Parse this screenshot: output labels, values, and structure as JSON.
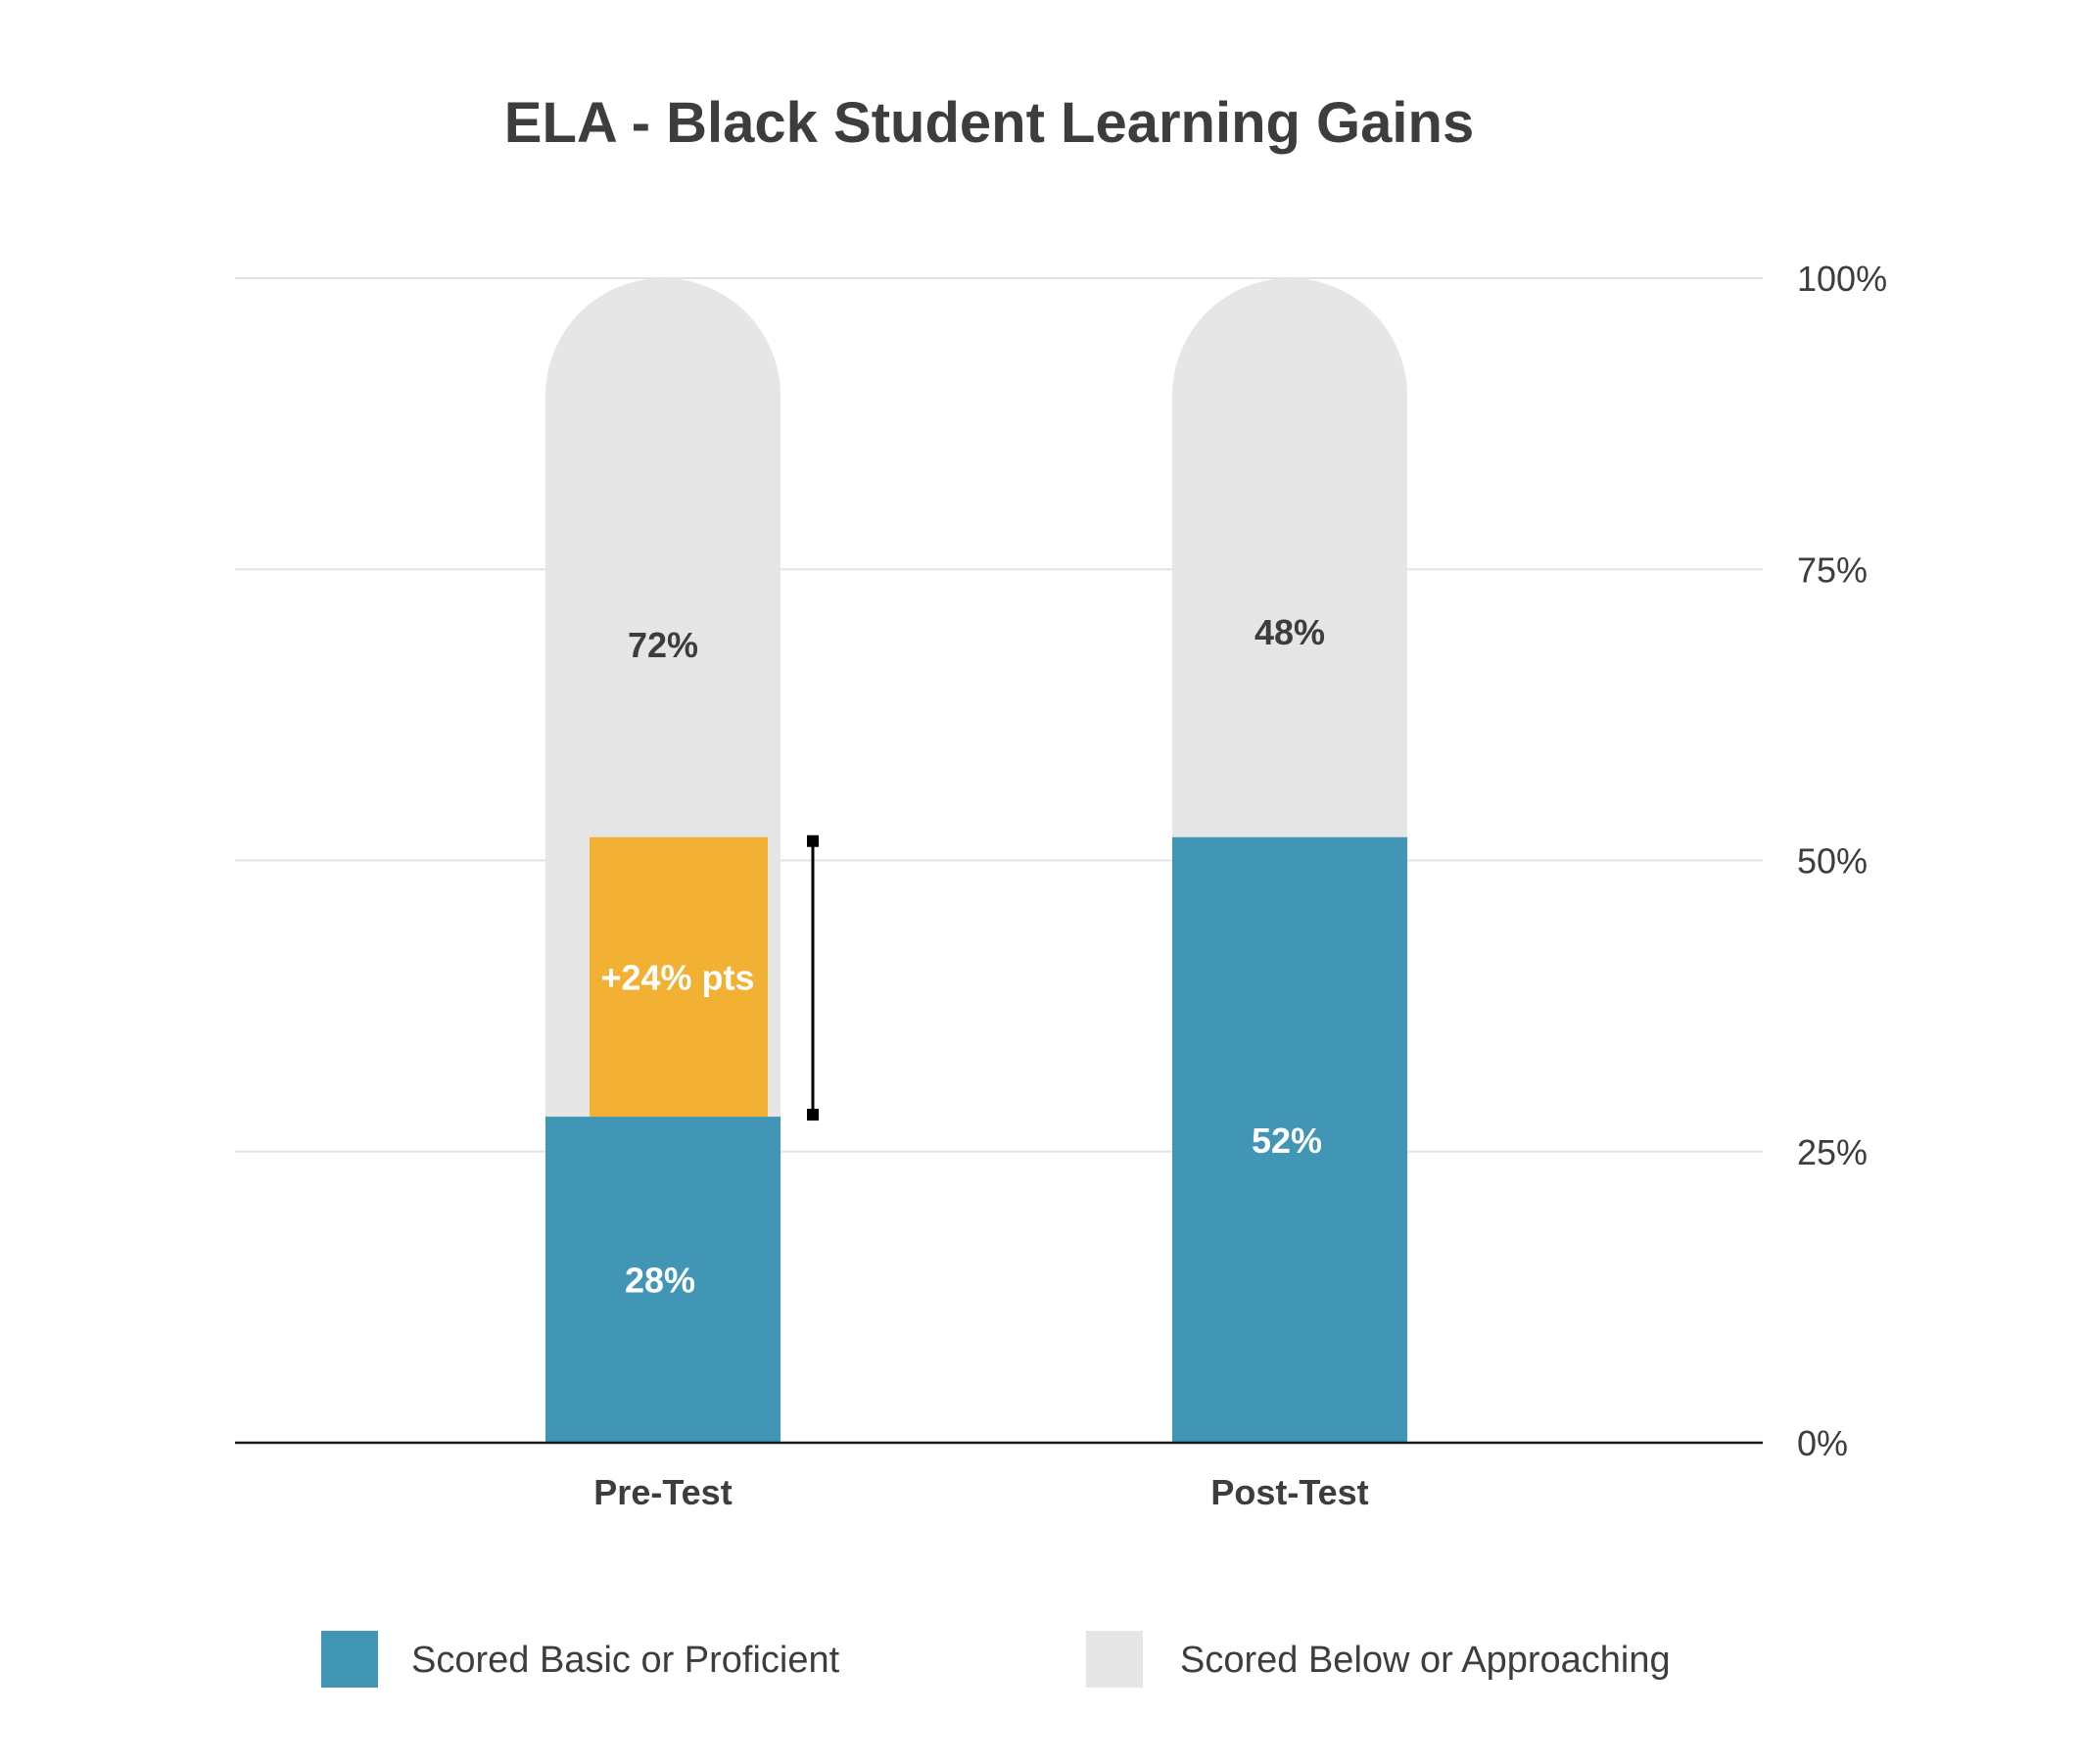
{
  "colors": {
    "basic_proficient": "#4296b5",
    "below_approaching": "#e6e6e6",
    "gain": "#f2b132",
    "text": "#3d3d3d",
    "grid": "#e3e3e3",
    "axis": "#1a1a1a"
  },
  "chart_data": {
    "type": "bar",
    "stacked": true,
    "title": "ELA - Black Student Learning Gains",
    "categories": [
      "Pre-Test",
      "Post-Test"
    ],
    "ylim": [
      0,
      100
    ],
    "yticks": [
      0,
      25,
      50,
      75,
      100
    ],
    "ytick_labels": [
      "0%",
      "25%",
      "50%",
      "75%",
      "100%"
    ],
    "yaxis_side": "right",
    "grid": true,
    "series": [
      {
        "name": "Scored Basic or Proficient",
        "values": [
          28,
          52
        ],
        "labels": [
          "28%",
          "52%"
        ]
      },
      {
        "name": "Scored Below or Approaching",
        "values": [
          72,
          48
        ],
        "labels": [
          "72%",
          "48%"
        ]
      }
    ],
    "annotation": {
      "category": "Pre-Test",
      "from": 28,
      "to": 52,
      "label": "+24% pts"
    },
    "legend": {
      "position": "bottom"
    }
  }
}
